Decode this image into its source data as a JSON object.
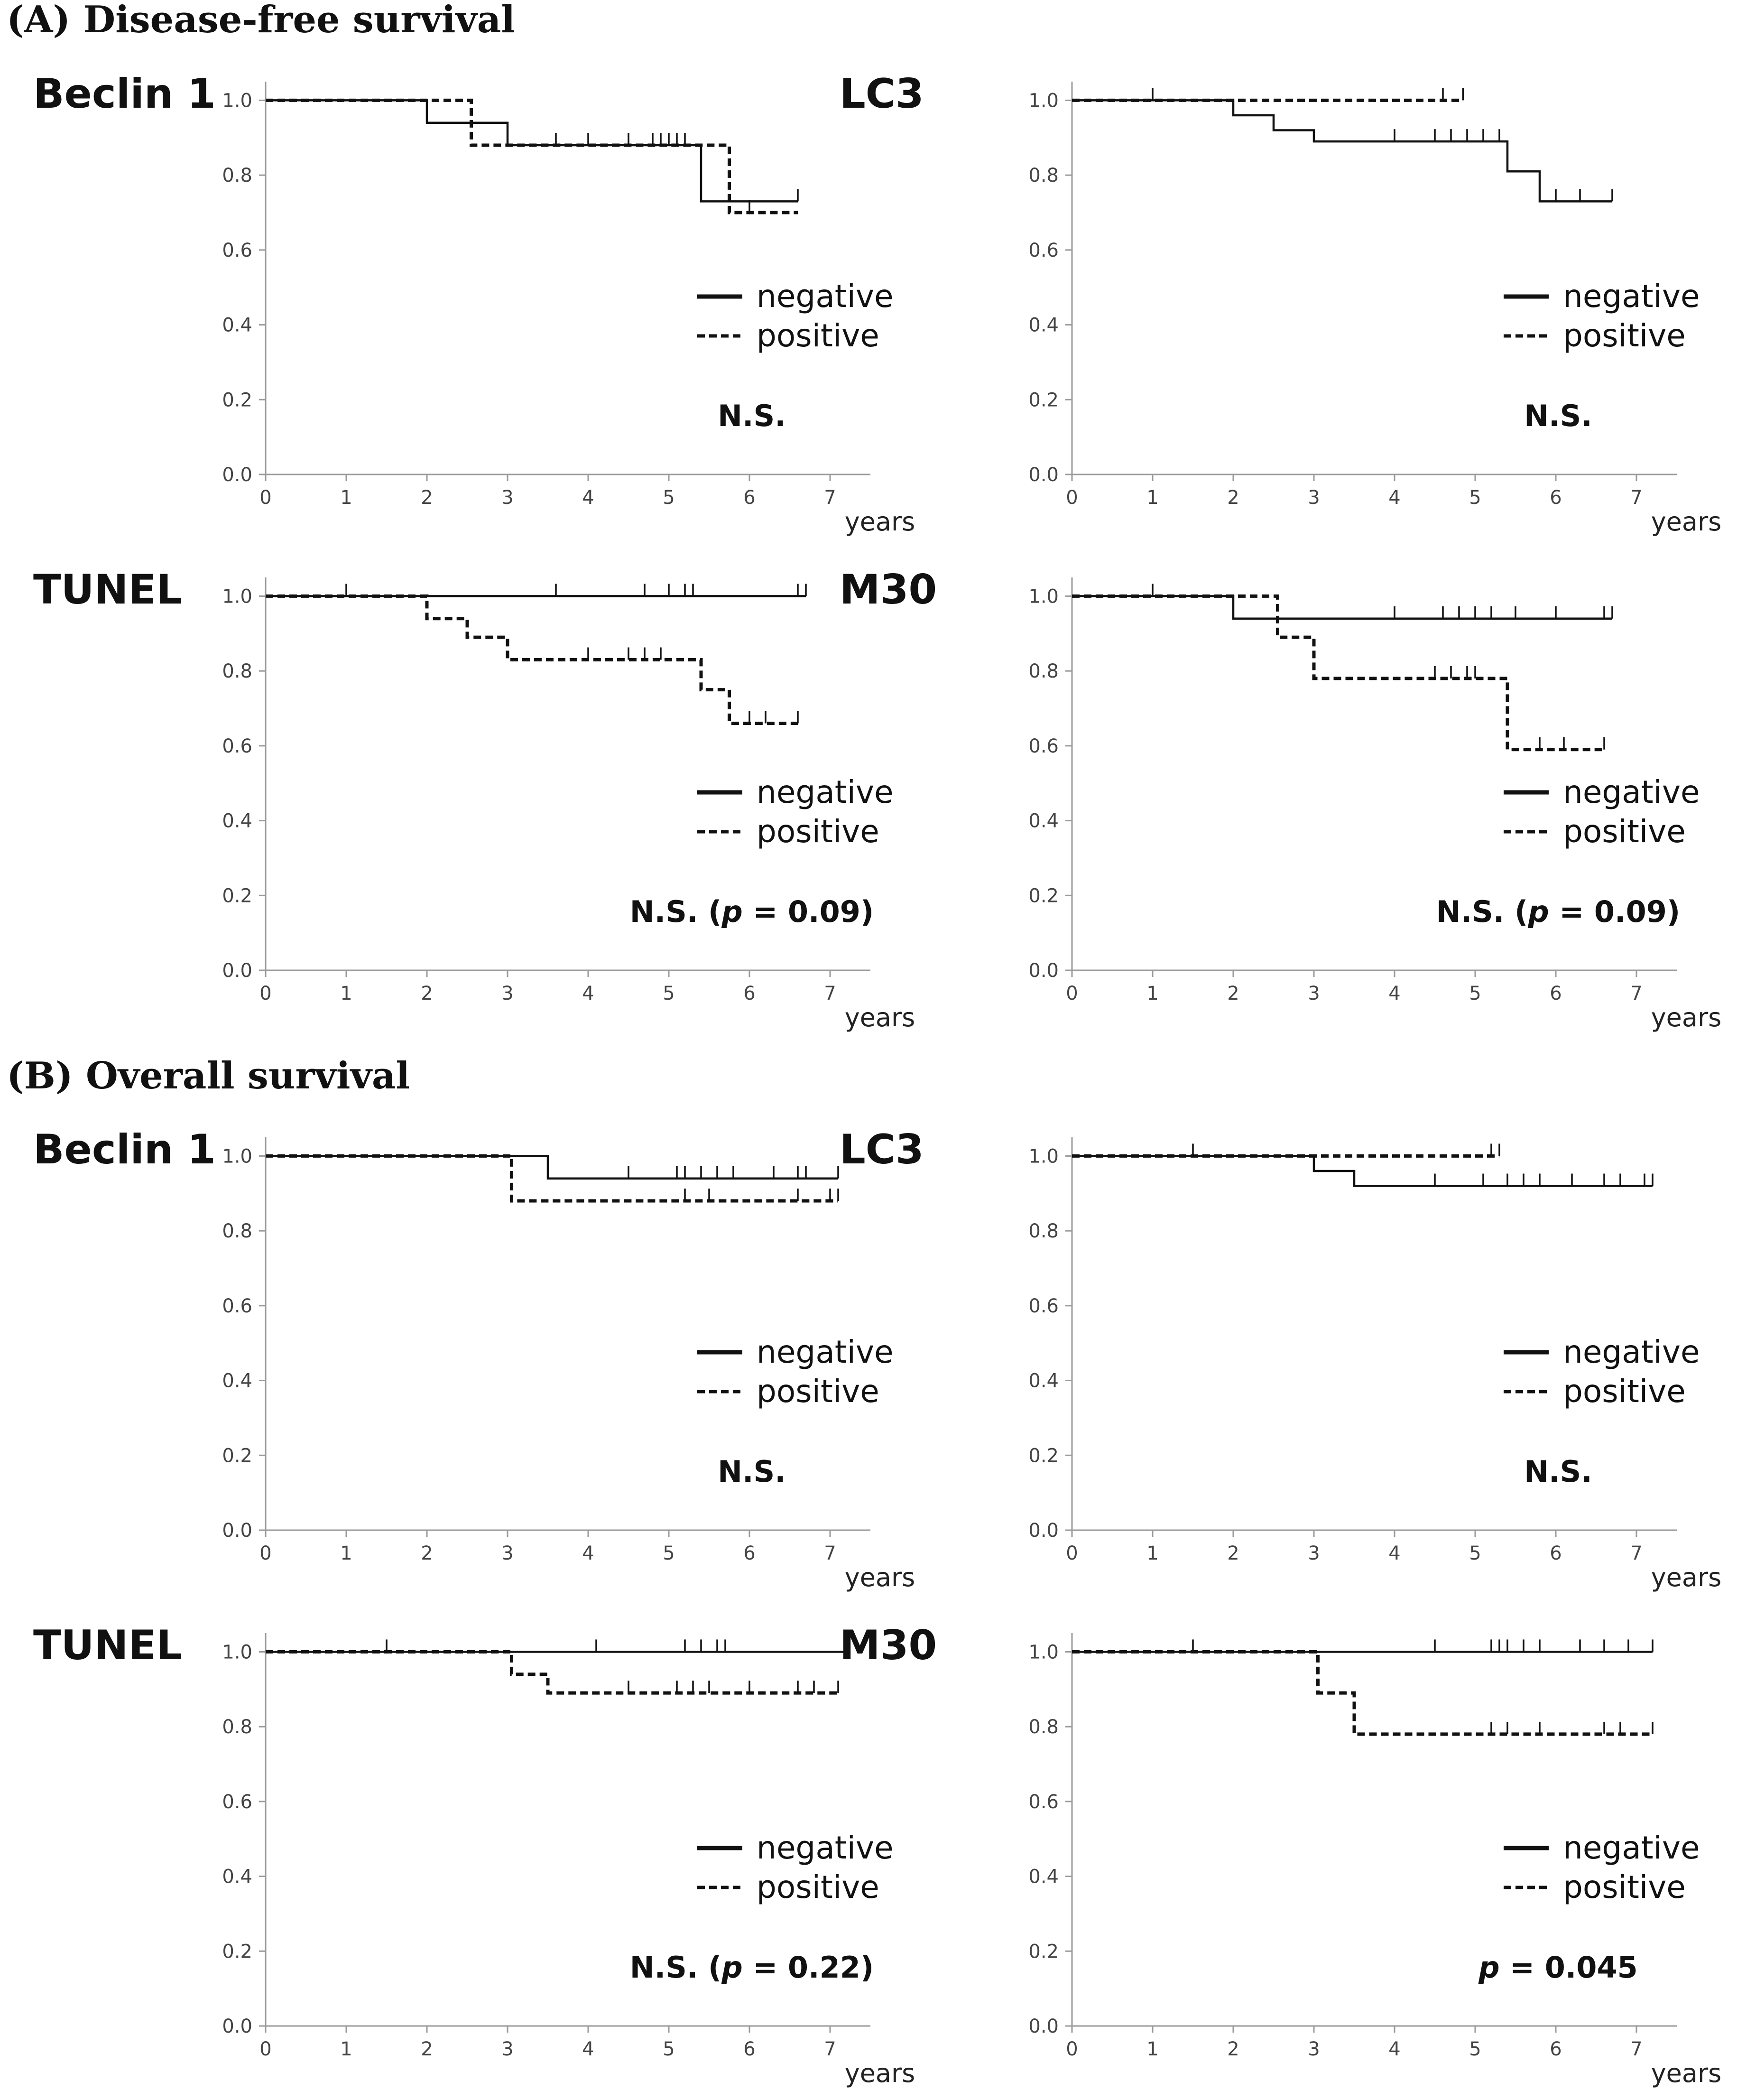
{
  "figure": {
    "section_a_heading": "(A) Disease-free survival",
    "section_b_heading": "(B) Overall survival"
  },
  "chart_data": [
    {
      "type": "line",
      "section": "A",
      "marker": "Beclin 1",
      "xlabel": "years",
      "xlim": [
        0,
        7.5
      ],
      "ylim": [
        0.0,
        1.05
      ],
      "xticks": [
        "0",
        "1",
        "2",
        "3",
        "4",
        "5",
        "6",
        "7"
      ],
      "yticks": [
        "0.0",
        "0.2",
        "0.4",
        "0.6",
        "0.8",
        "1.0"
      ],
      "legend": [
        "negative",
        "positive"
      ],
      "legend_position": "lower-right",
      "significance": {
        "prefix": "N.S.",
        "p_value": ""
      },
      "series": [
        {
          "name": "negative",
          "style": "solid",
          "steps": [
            [
              0,
              1.0
            ],
            [
              2.0,
              0.94
            ],
            [
              3.0,
              0.88
            ],
            [
              5.4,
              0.73
            ],
            [
              6.6,
              0.73
            ]
          ],
          "censored": [
            [
              3.6,
              0.88
            ],
            [
              4.0,
              0.88
            ],
            [
              4.8,
              0.88
            ],
            [
              5.0,
              0.88
            ],
            [
              5.2,
              0.88
            ],
            [
              6.6,
              0.73
            ]
          ]
        },
        {
          "name": "positive",
          "style": "dashed",
          "steps": [
            [
              0,
              1.0
            ],
            [
              2.55,
              0.88
            ],
            [
              5.75,
              0.7
            ],
            [
              6.6,
              0.7
            ]
          ],
          "censored": [
            [
              4.5,
              0.88
            ],
            [
              4.9,
              0.88
            ],
            [
              5.1,
              0.88
            ],
            [
              6.0,
              0.7
            ]
          ]
        }
      ]
    },
    {
      "type": "line",
      "section": "A",
      "marker": "LC3",
      "xlabel": "years",
      "xlim": [
        0,
        7.5
      ],
      "ylim": [
        0.0,
        1.05
      ],
      "xticks": [
        "0",
        "1",
        "2",
        "3",
        "4",
        "5",
        "6",
        "7"
      ],
      "yticks": [
        "0.0",
        "0.2",
        "0.4",
        "0.6",
        "0.8",
        "1.0"
      ],
      "legend": [
        "negative",
        "positive"
      ],
      "legend_position": "lower-right",
      "significance": {
        "prefix": "N.S.",
        "p_value": ""
      },
      "series": [
        {
          "name": "negative",
          "style": "solid",
          "steps": [
            [
              0,
              1.0
            ],
            [
              2.0,
              0.96
            ],
            [
              2.5,
              0.92
            ],
            [
              3.0,
              0.89
            ],
            [
              5.4,
              0.81
            ],
            [
              5.8,
              0.73
            ],
            [
              6.7,
              0.73
            ]
          ],
          "censored": [
            [
              4.0,
              0.89
            ],
            [
              4.5,
              0.89
            ],
            [
              4.7,
              0.89
            ],
            [
              4.9,
              0.89
            ],
            [
              5.1,
              0.89
            ],
            [
              5.3,
              0.89
            ],
            [
              6.0,
              0.73
            ],
            [
              6.3,
              0.73
            ],
            [
              6.7,
              0.73
            ]
          ]
        },
        {
          "name": "positive",
          "style": "dashed",
          "steps": [
            [
              0,
              1.0
            ],
            [
              4.85,
              1.0
            ]
          ],
          "censored": [
            [
              1.0,
              1.0
            ],
            [
              4.6,
              1.0
            ],
            [
              4.85,
              1.0
            ]
          ]
        }
      ]
    },
    {
      "type": "line",
      "section": "A",
      "marker": "TUNEL",
      "xlabel": "years",
      "xlim": [
        0,
        7.5
      ],
      "ylim": [
        0.0,
        1.05
      ],
      "xticks": [
        "0",
        "1",
        "2",
        "3",
        "4",
        "5",
        "6",
        "7"
      ],
      "yticks": [
        "0.0",
        "0.2",
        "0.4",
        "0.6",
        "0.8",
        "1.0"
      ],
      "legend": [
        "negative",
        "positive"
      ],
      "legend_position": "lower-right",
      "significance": {
        "prefix": "N.S. (",
        "p_label": "p",
        "p_value": " = 0.09)"
      },
      "series": [
        {
          "name": "negative",
          "style": "solid",
          "steps": [
            [
              0,
              1.0
            ],
            [
              6.7,
              1.0
            ]
          ],
          "censored": [
            [
              1.0,
              1.0
            ],
            [
              3.6,
              1.0
            ],
            [
              4.7,
              1.0
            ],
            [
              5.0,
              1.0
            ],
            [
              5.2,
              1.0
            ],
            [
              5.3,
              1.0
            ],
            [
              6.6,
              1.0
            ],
            [
              6.7,
              1.0
            ]
          ]
        },
        {
          "name": "positive",
          "style": "dashed",
          "steps": [
            [
              0,
              1.0
            ],
            [
              2.0,
              0.94
            ],
            [
              2.5,
              0.89
            ],
            [
              3.0,
              0.83
            ],
            [
              5.4,
              0.75
            ],
            [
              5.75,
              0.66
            ],
            [
              6.6,
              0.66
            ]
          ],
          "censored": [
            [
              4.0,
              0.83
            ],
            [
              4.5,
              0.83
            ],
            [
              4.7,
              0.83
            ],
            [
              4.9,
              0.83
            ],
            [
              6.0,
              0.66
            ],
            [
              6.2,
              0.66
            ],
            [
              6.6,
              0.66
            ]
          ]
        }
      ]
    },
    {
      "type": "line",
      "section": "A",
      "marker": "M30",
      "xlabel": "years",
      "xlim": [
        0,
        7.5
      ],
      "ylim": [
        0.0,
        1.05
      ],
      "xticks": [
        "0",
        "1",
        "2",
        "3",
        "4",
        "5",
        "6",
        "7"
      ],
      "yticks": [
        "0.0",
        "0.2",
        "0.4",
        "0.6",
        "0.8",
        "1.0"
      ],
      "legend": [
        "negative",
        "positive"
      ],
      "legend_position": "lower-right",
      "significance": {
        "prefix": "N.S. (",
        "p_label": "p",
        "p_value": " = 0.09)"
      },
      "series": [
        {
          "name": "negative",
          "style": "solid",
          "steps": [
            [
              0,
              1.0
            ],
            [
              2.0,
              0.94
            ],
            [
              6.7,
              0.94
            ]
          ],
          "censored": [
            [
              1.0,
              1.0
            ],
            [
              4.0,
              0.94
            ],
            [
              4.6,
              0.94
            ],
            [
              4.8,
              0.94
            ],
            [
              5.0,
              0.94
            ],
            [
              5.2,
              0.94
            ],
            [
              5.5,
              0.94
            ],
            [
              6.0,
              0.94
            ],
            [
              6.6,
              0.94
            ],
            [
              6.7,
              0.94
            ]
          ]
        },
        {
          "name": "positive",
          "style": "dashed",
          "steps": [
            [
              0,
              1.0
            ],
            [
              2.55,
              0.89
            ],
            [
              3.0,
              0.78
            ],
            [
              5.4,
              0.59
            ],
            [
              6.6,
              0.59
            ]
          ],
          "censored": [
            [
              4.5,
              0.78
            ],
            [
              4.7,
              0.78
            ],
            [
              4.9,
              0.78
            ],
            [
              5.0,
              0.78
            ],
            [
              5.8,
              0.59
            ],
            [
              6.1,
              0.59
            ],
            [
              6.6,
              0.59
            ]
          ]
        }
      ]
    },
    {
      "type": "line",
      "section": "B",
      "marker": "Beclin 1",
      "xlabel": "years",
      "xlim": [
        0,
        7.5
      ],
      "ylim": [
        0.0,
        1.05
      ],
      "xticks": [
        "0",
        "1",
        "2",
        "3",
        "4",
        "5",
        "6",
        "7"
      ],
      "yticks": [
        "0.0",
        "0.2",
        "0.4",
        "0.6",
        "0.8",
        "1.0"
      ],
      "legend": [
        "negative",
        "positive"
      ],
      "legend_position": "lower-right",
      "significance": {
        "prefix": "N.S.",
        "p_value": ""
      },
      "series": [
        {
          "name": "negative",
          "style": "solid",
          "steps": [
            [
              0,
              1.0
            ],
            [
              3.5,
              0.94
            ],
            [
              7.1,
              0.94
            ]
          ],
          "censored": [
            [
              4.5,
              0.94
            ],
            [
              5.1,
              0.94
            ],
            [
              5.2,
              0.94
            ],
            [
              5.4,
              0.94
            ],
            [
              5.6,
              0.94
            ],
            [
              5.8,
              0.94
            ],
            [
              6.3,
              0.94
            ],
            [
              6.6,
              0.94
            ],
            [
              6.7,
              0.94
            ],
            [
              7.1,
              0.94
            ]
          ]
        },
        {
          "name": "positive",
          "style": "dashed",
          "steps": [
            [
              0,
              1.0
            ],
            [
              3.05,
              0.88
            ],
            [
              7.1,
              0.88
            ]
          ],
          "censored": [
            [
              5.2,
              0.88
            ],
            [
              5.5,
              0.88
            ],
            [
              6.6,
              0.88
            ],
            [
              7.0,
              0.88
            ],
            [
              7.1,
              0.88
            ]
          ]
        }
      ]
    },
    {
      "type": "line",
      "section": "B",
      "marker": "LC3",
      "xlabel": "years",
      "xlim": [
        0,
        7.5
      ],
      "ylim": [
        0.0,
        1.05
      ],
      "xticks": [
        "0",
        "1",
        "2",
        "3",
        "4",
        "5",
        "6",
        "7"
      ],
      "yticks": [
        "0.0",
        "0.2",
        "0.4",
        "0.6",
        "0.8",
        "1.0"
      ],
      "legend": [
        "negative",
        "positive"
      ],
      "legend_position": "lower-right",
      "significance": {
        "prefix": "N.S.",
        "p_value": ""
      },
      "series": [
        {
          "name": "negative",
          "style": "solid",
          "steps": [
            [
              0,
              1.0
            ],
            [
              3.0,
              0.96
            ],
            [
              3.5,
              0.92
            ],
            [
              7.2,
              0.92
            ]
          ],
          "censored": [
            [
              4.5,
              0.92
            ],
            [
              5.1,
              0.92
            ],
            [
              5.4,
              0.92
            ],
            [
              5.6,
              0.92
            ],
            [
              5.8,
              0.92
            ],
            [
              6.2,
              0.92
            ],
            [
              6.6,
              0.92
            ],
            [
              6.8,
              0.92
            ],
            [
              7.1,
              0.92
            ],
            [
              7.2,
              0.92
            ]
          ]
        },
        {
          "name": "positive",
          "style": "dashed",
          "steps": [
            [
              0,
              1.0
            ],
            [
              5.3,
              1.0
            ]
          ],
          "censored": [
            [
              1.5,
              1.0
            ],
            [
              5.2,
              1.0
            ],
            [
              5.3,
              1.0
            ]
          ]
        }
      ]
    },
    {
      "type": "line",
      "section": "B",
      "marker": "TUNEL",
      "xlabel": "years",
      "xlim": [
        0,
        7.5
      ],
      "ylim": [
        0.0,
        1.05
      ],
      "xticks": [
        "0",
        "1",
        "2",
        "3",
        "4",
        "5",
        "6",
        "7"
      ],
      "yticks": [
        "0.0",
        "0.2",
        "0.4",
        "0.6",
        "0.8",
        "1.0"
      ],
      "legend": [
        "negative",
        "positive"
      ],
      "legend_position": "lower-right",
      "significance": {
        "prefix": "N.S. (",
        "p_label": "p",
        "p_value": " = 0.22)"
      },
      "series": [
        {
          "name": "negative",
          "style": "solid",
          "steps": [
            [
              0,
              1.0
            ],
            [
              7.2,
              1.0
            ]
          ],
          "censored": [
            [
              1.5,
              1.0
            ],
            [
              4.1,
              1.0
            ],
            [
              5.2,
              1.0
            ],
            [
              5.4,
              1.0
            ],
            [
              5.6,
              1.0
            ],
            [
              5.7,
              1.0
            ],
            [
              7.2,
              1.0
            ]
          ]
        },
        {
          "name": "positive",
          "style": "dashed",
          "steps": [
            [
              0,
              1.0
            ],
            [
              3.05,
              0.94
            ],
            [
              3.5,
              0.89
            ],
            [
              7.1,
              0.89
            ]
          ],
          "censored": [
            [
              4.5,
              0.89
            ],
            [
              5.1,
              0.89
            ],
            [
              5.3,
              0.89
            ],
            [
              5.5,
              0.89
            ],
            [
              6.0,
              0.89
            ],
            [
              6.6,
              0.89
            ],
            [
              6.8,
              0.89
            ],
            [
              7.1,
              0.89
            ]
          ]
        }
      ]
    },
    {
      "type": "line",
      "section": "B",
      "marker": "M30",
      "xlabel": "years",
      "xlim": [
        0,
        7.5
      ],
      "ylim": [
        0.0,
        1.05
      ],
      "xticks": [
        "0",
        "1",
        "2",
        "3",
        "4",
        "5",
        "6",
        "7"
      ],
      "yticks": [
        "0.0",
        "0.2",
        "0.4",
        "0.6",
        "0.8",
        "1.0"
      ],
      "legend": [
        "negative",
        "positive"
      ],
      "legend_position": "lower-right",
      "significance": {
        "prefix": "",
        "p_label": "p",
        "p_value": " = 0.045"
      },
      "series": [
        {
          "name": "negative",
          "style": "solid",
          "steps": [
            [
              0,
              1.0
            ],
            [
              7.2,
              1.0
            ]
          ],
          "censored": [
            [
              1.5,
              1.0
            ],
            [
              4.5,
              1.0
            ],
            [
              5.2,
              1.0
            ],
            [
              5.3,
              1.0
            ],
            [
              5.4,
              1.0
            ],
            [
              5.6,
              1.0
            ],
            [
              5.8,
              1.0
            ],
            [
              6.3,
              1.0
            ],
            [
              6.6,
              1.0
            ],
            [
              6.9,
              1.0
            ],
            [
              7.2,
              1.0
            ]
          ]
        },
        {
          "name": "positive",
          "style": "dashed",
          "steps": [
            [
              0,
              1.0
            ],
            [
              3.05,
              0.89
            ],
            [
              3.5,
              0.78
            ],
            [
              7.2,
              0.78
            ]
          ],
          "censored": [
            [
              5.2,
              0.78
            ],
            [
              5.4,
              0.78
            ],
            [
              5.8,
              0.78
            ],
            [
              6.6,
              0.78
            ],
            [
              6.8,
              0.78
            ],
            [
              7.2,
              0.78
            ]
          ]
        }
      ]
    }
  ]
}
